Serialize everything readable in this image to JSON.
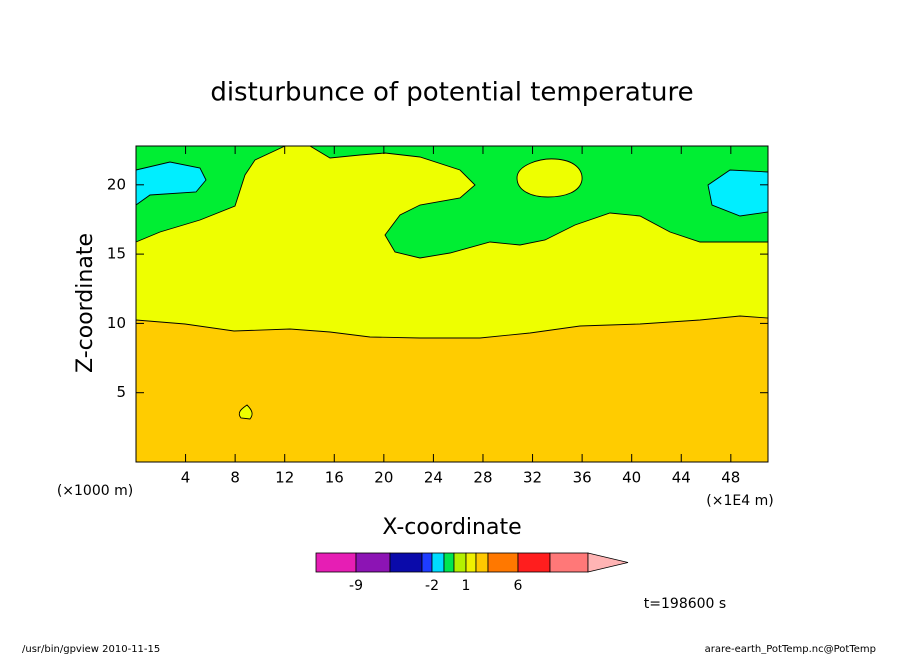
{
  "chart_data": {
    "type": "contour",
    "title": "disturbunce of potential temperature",
    "x_label": "X-coordinate",
    "y_label": "Z-coordinate",
    "x_unit_label": "(×1000 m)",
    "x_scale_label": "(×1E4 m)",
    "xlim": [
      0,
      51
    ],
    "xticks": [
      4,
      8,
      12,
      16,
      20,
      24,
      28,
      32,
      36,
      40,
      44,
      48
    ],
    "ylim": [
      0,
      22.8
    ],
    "yticks": [
      5,
      10,
      15,
      20
    ],
    "colorbar": {
      "colors": [
        "#e61eb4",
        "#8c14b4",
        "#0a0aaa",
        "#1e3cff",
        "#00dcff",
        "#00e650",
        "#b4f000",
        "#f0f000",
        "#ffc800",
        "#ff7800",
        "#ff1e1e",
        "#ff7878",
        "#ffb4b4"
      ],
      "ticks": [
        -9,
        -2,
        1,
        6
      ]
    },
    "time_label": "t=198600 s",
    "footer_left": "/usr/bin/gpview   2010-11-15",
    "footer_right": "arare-earth_PotTemp.nc@PotTemp"
  }
}
